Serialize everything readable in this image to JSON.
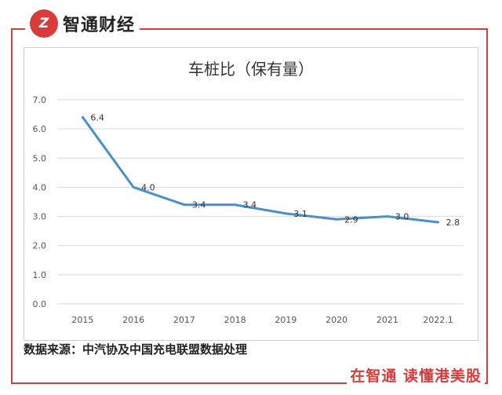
{
  "brand": {
    "logo_mark": "Z",
    "name": "智通财经",
    "slogan": "在智通 读懂港美股"
  },
  "source_note": "数据来源：中汽协及中国充电联盟数据处理",
  "colors": {
    "accent": "#d93a3a",
    "line": "#4a90c8"
  },
  "chart_data": {
    "type": "line",
    "title": "车桩比（保有量）",
    "categories": [
      "2015",
      "2016",
      "2017",
      "2018",
      "2019",
      "2020",
      "2021",
      "2022.1"
    ],
    "values": [
      6.4,
      4.0,
      3.4,
      3.4,
      3.1,
      2.9,
      3.0,
      2.8
    ],
    "data_labels": [
      "6.4",
      "4.0",
      "3.4",
      "3.4",
      "3.1",
      "2.9",
      "3.0",
      "2.8"
    ],
    "xlabel": "",
    "ylabel": "",
    "ylim": [
      0,
      7
    ],
    "yticks": [
      "0.0",
      "1.0",
      "2.0",
      "3.0",
      "4.0",
      "5.0",
      "6.0",
      "7.0"
    ],
    "grid": true,
    "legend": "none"
  }
}
